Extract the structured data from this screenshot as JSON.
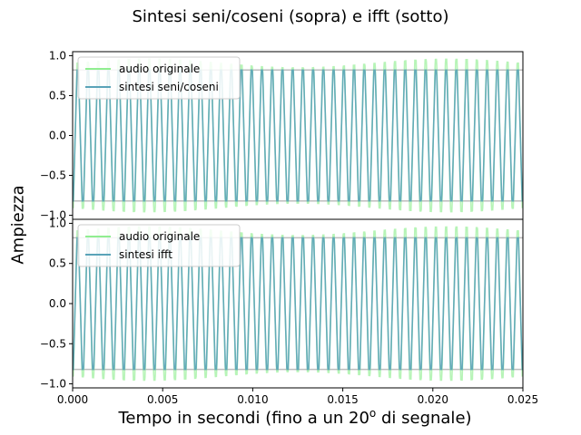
{
  "figure": {
    "title": "Sintesi seni/coseni (sopra) e ifft (sotto)",
    "ylabel": "Ampiezza",
    "xlabel_pre": "Tempo in secondi (fino a un 20",
    "xlabel_sup": "o",
    "xlabel_post": " di segnale)"
  },
  "colors": {
    "original": "#90ee90",
    "synthesis": "#5aa3b8",
    "reference_line": "#bdbdbd"
  },
  "chart_data": [
    {
      "type": "line",
      "panel": "top",
      "xlim": [
        0,
        0.025
      ],
      "ylim": [
        -1.05,
        1.05
      ],
      "yticks": [
        -1.0,
        -0.5,
        0.0,
        0.5,
        1.0
      ],
      "yticklabels": [
        "−1.0",
        "−0.5",
        "0.0",
        "0.5",
        "1.0"
      ],
      "xticks": [],
      "legend_position": "upper-left",
      "series": [
        {
          "name": "audio originale",
          "kind": "square-wave",
          "frequency_hz": 1760,
          "amplitude": 0.9,
          "color": "#90ee90"
        },
        {
          "name": "sintesi seni/coseni",
          "kind": "square-wave",
          "frequency_hz": 1760,
          "amplitude": 0.82,
          "color": "#5aa3b8"
        }
      ],
      "reference_levels": [
        0.82,
        -0.82
      ]
    },
    {
      "type": "line",
      "panel": "bottom",
      "xlim": [
        0,
        0.025
      ],
      "ylim": [
        -1.05,
        1.05
      ],
      "yticks": [
        -1.0,
        -0.5,
        0.0,
        0.5,
        1.0
      ],
      "yticklabels": [
        "−1.0",
        "−0.5",
        "0.0",
        "0.5",
        "1.0"
      ],
      "xticks": [
        0.0,
        0.005,
        0.01,
        0.015,
        0.02,
        0.025
      ],
      "xticklabels": [
        "0.000",
        "0.005",
        "0.010",
        "0.015",
        "0.020",
        "0.025"
      ],
      "legend_position": "upper-left",
      "series": [
        {
          "name": "audio originale",
          "kind": "square-wave",
          "frequency_hz": 1760,
          "amplitude": 0.9,
          "color": "#90ee90"
        },
        {
          "name": "sintesi ifft",
          "kind": "square-wave",
          "frequency_hz": 1760,
          "amplitude": 0.82,
          "color": "#5aa3b8"
        }
      ],
      "reference_levels": [
        0.82,
        -0.82
      ]
    }
  ]
}
